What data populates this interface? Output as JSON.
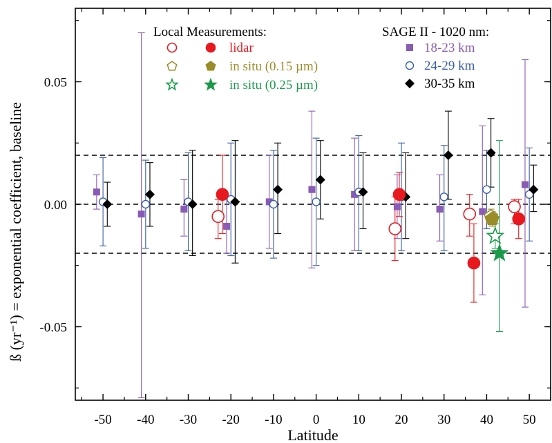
{
  "chart_data": {
    "type": "scatter",
    "xlabel": "Latitude",
    "ylabel": "ß (yr⁻¹) = exponential coefficient, baseline",
    "xlim": [
      -56.5,
      55
    ],
    "ylim": [
      -0.08,
      0.08
    ],
    "x_ticks": [
      -50,
      -40,
      -30,
      -20,
      -10,
      0,
      10,
      20,
      30,
      40,
      50
    ],
    "x_tick_labels": [
      "-50",
      "-40",
      "-30",
      "-20",
      "-10",
      "0",
      "10",
      "20",
      "30",
      "40",
      "50"
    ],
    "y_ticks": [
      -0.05,
      0.0,
      0.05
    ],
    "y_tick_labels": [
      "-0.05",
      "0.00",
      "0.05"
    ],
    "reference_lines": [
      0.02,
      0.0,
      -0.02
    ],
    "legend": {
      "local_title": "Local Measurements:",
      "local_entries": [
        {
          "label": "lidar",
          "color": "#e8191e"
        },
        {
          "label": "in situ (0.15 µm)",
          "color": "#9b8c2a"
        },
        {
          "label": "in situ (0.25 µm)",
          "color": "#1a9a4a"
        }
      ],
      "sage_title": "SAGE II - 1020 nm:",
      "sage_entries": [
        {
          "label": "18-23 km",
          "color": "#8a5bb5"
        },
        {
          "label": "24-29 km",
          "color": "#3a5ea8"
        },
        {
          "label": "30-35 km",
          "color": "#000000"
        }
      ]
    },
    "series": [
      {
        "name": "18-23 km",
        "marker": "filled-square",
        "color": "#8a5bb5",
        "points": [
          {
            "x": -51.5,
            "y": 0.005,
            "lo": -0.002,
            "hi": 0.012
          },
          {
            "x": -41,
            "y": -0.004,
            "lo": -0.079,
            "hi": 0.07
          },
          {
            "x": -31,
            "y": -0.002,
            "lo": -0.013,
            "hi": 0.01
          },
          {
            "x": -21,
            "y": -0.009,
            "lo": -0.02,
            "hi": 0.003
          },
          {
            "x": -11,
            "y": 0.001,
            "lo": -0.018,
            "hi": 0.02
          },
          {
            "x": -1,
            "y": 0.006,
            "lo": -0.026,
            "hi": 0.038
          },
          {
            "x": 9,
            "y": 0.004,
            "lo": -0.019,
            "hi": 0.027
          },
          {
            "x": 19,
            "y": -0.001,
            "lo": -0.014,
            "hi": 0.012
          },
          {
            "x": 29,
            "y": -0.002,
            "lo": -0.015,
            "hi": 0.012
          },
          {
            "x": 39,
            "y": -0.003,
            "lo": -0.037,
            "hi": 0.032
          },
          {
            "x": 49,
            "y": 0.008,
            "lo": -0.042,
            "hi": 0.059
          }
        ]
      },
      {
        "name": "24-29 km",
        "marker": "open-circle",
        "color": "#3a5ea8",
        "points": [
          {
            "x": -50,
            "y": 0.001,
            "lo": -0.017,
            "hi": 0.019
          },
          {
            "x": -40,
            "y": 0.0,
            "lo": -0.018,
            "hi": 0.018
          },
          {
            "x": -30,
            "y": 0.001,
            "lo": -0.019,
            "hi": 0.021
          },
          {
            "x": -20,
            "y": 0.002,
            "lo": -0.021,
            "hi": 0.025
          },
          {
            "x": -10,
            "y": 0.0,
            "lo": -0.022,
            "hi": 0.022
          },
          {
            "x": 0,
            "y": 0.001,
            "lo": -0.025,
            "hi": 0.027
          },
          {
            "x": 10,
            "y": 0.005,
            "lo": -0.019,
            "hi": 0.028
          },
          {
            "x": 20,
            "y": 0.003,
            "lo": -0.019,
            "hi": 0.025
          },
          {
            "x": 30,
            "y": 0.003,
            "lo": -0.019,
            "hi": 0.024
          },
          {
            "x": 40,
            "y": 0.006,
            "lo": -0.01,
            "hi": 0.022
          },
          {
            "x": 50,
            "y": 0.004,
            "lo": -0.015,
            "hi": 0.023
          }
        ]
      },
      {
        "name": "30-35 km",
        "marker": "filled-diamond",
        "color": "#000000",
        "points": [
          {
            "x": -49,
            "y": 0.0,
            "lo": -0.009,
            "hi": 0.009
          },
          {
            "x": -39,
            "y": 0.004,
            "lo": -0.009,
            "hi": 0.017
          },
          {
            "x": -29,
            "y": 0.0,
            "lo": -0.021,
            "hi": 0.022
          },
          {
            "x": -19,
            "y": 0.001,
            "lo": -0.024,
            "hi": 0.026
          },
          {
            "x": -9,
            "y": 0.006,
            "lo": -0.012,
            "hi": 0.025
          },
          {
            "x": 1,
            "y": 0.01,
            "lo": -0.006,
            "hi": 0.026
          },
          {
            "x": 11,
            "y": 0.005,
            "lo": -0.01,
            "hi": 0.021
          },
          {
            "x": 21,
            "y": 0.003,
            "lo": -0.014,
            "hi": 0.021
          },
          {
            "x": 31,
            "y": 0.02,
            "lo": 0.002,
            "hi": 0.038
          },
          {
            "x": 41,
            "y": 0.021,
            "lo": 0.007,
            "hi": 0.035
          },
          {
            "x": 51,
            "y": 0.006,
            "lo": -0.003,
            "hi": 0.016
          }
        ]
      },
      {
        "name": "lidar",
        "marker": "circle-open-filled",
        "color": "#e8191e",
        "points": [
          {
            "x": -23,
            "y": -0.005,
            "lo": -0.014,
            "hi": 0.002,
            "filled": false
          },
          {
            "x": -22,
            "y": 0.004,
            "lo": -0.012,
            "hi": 0.02,
            "filled": true
          },
          {
            "x": 18.5,
            "y": -0.01,
            "lo": -0.023,
            "hi": 0.003,
            "filled": false
          },
          {
            "x": 19.5,
            "y": 0.004,
            "lo": -0.005,
            "hi": 0.013,
            "filled": true
          },
          {
            "x": 36,
            "y": -0.004,
            "lo": -0.013,
            "hi": 0.004,
            "filled": false
          },
          {
            "x": 37,
            "y": -0.024,
            "lo": -0.04,
            "hi": -0.008,
            "filled": true
          },
          {
            "x": 46.5,
            "y": -0.001,
            "lo": -0.008,
            "hi": 0.002,
            "filled": false
          },
          {
            "x": 47.5,
            "y": -0.006,
            "lo": -0.014,
            "hi": 0.002,
            "filled": true
          }
        ]
      },
      {
        "name": "in situ (0.15 µm)",
        "marker": "pentagon",
        "color": "#9b8c2a",
        "points": [
          {
            "x": 41,
            "y": -0.005,
            "lo": -0.008,
            "hi": -0.002,
            "filled": false
          },
          {
            "x": 41.3,
            "y": -0.006,
            "lo": -0.009,
            "hi": -0.003,
            "filled": true
          }
        ]
      },
      {
        "name": "in situ (0.25 µm)",
        "marker": "star",
        "color": "#1a9a4a",
        "points": [
          {
            "x": 42,
            "y": -0.013,
            "lo": -0.018,
            "hi": -0.008,
            "filled": false
          },
          {
            "x": 43,
            "y": -0.02,
            "lo": -0.052,
            "hi": 0.026,
            "filled": true
          }
        ]
      }
    ]
  }
}
